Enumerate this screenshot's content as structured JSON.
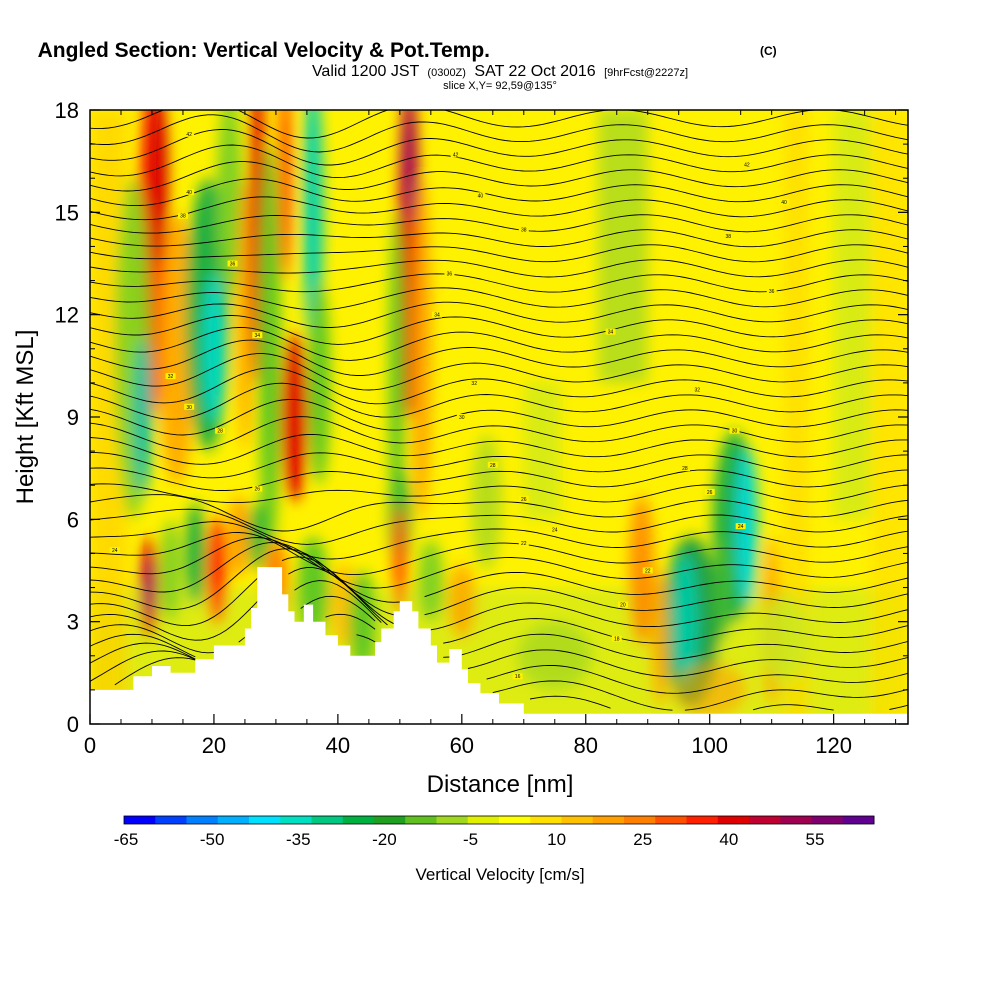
{
  "chart_data": {
    "type": "heatmap",
    "title": "Angled Section: Vertical Velocity & Pot.Temp.",
    "title_suffix": "(C)",
    "subtitle_valid": "Valid 1200 JST",
    "subtitle_utc": "(0300Z)",
    "subtitle_date": "SAT 22 Oct 2016",
    "subtitle_fcst": "[9hrFcst@2227z]",
    "slice_label": "slice X,Y= 92,59@135°",
    "xlabel": "Distance [nm]",
    "ylabel": "Height [Kft MSL]",
    "xlim": [
      0,
      132
    ],
    "ylim": [
      0,
      18
    ],
    "x_ticks": [
      0,
      20,
      40,
      60,
      80,
      100,
      120
    ],
    "y_ticks": [
      0,
      3,
      6,
      9,
      12,
      15,
      18
    ],
    "colorbar": {
      "label": "Vertical Velocity [cm/s]",
      "tick_labels": [
        -65,
        -50,
        -35,
        -20,
        -5,
        10,
        25,
        40,
        55
      ],
      "colors": [
        "#0000ff",
        "#0040ff",
        "#0080ff",
        "#00b0ff",
        "#00e0ff",
        "#00e0c0",
        "#00c880",
        "#00b040",
        "#20a020",
        "#60c020",
        "#a0d820",
        "#e0f000",
        "#ffff00",
        "#ffe000",
        "#ffc000",
        "#ffa000",
        "#ff8000",
        "#ff5000",
        "#ff2000",
        "#e00000",
        "#c00030",
        "#a00050",
        "#800070",
        "#600090"
      ]
    },
    "contour_labels": [
      {
        "x": 16,
        "y": 17.3,
        "text": "42"
      },
      {
        "x": 16,
        "y": 15.6,
        "text": "40"
      },
      {
        "x": 15,
        "y": 14.9,
        "text": "38"
      },
      {
        "x": 23,
        "y": 13.5,
        "text": "36"
      },
      {
        "x": 27,
        "y": 11.4,
        "text": "34"
      },
      {
        "x": 13,
        "y": 10.2,
        "text": "32"
      },
      {
        "x": 16,
        "y": 9.3,
        "text": "30"
      },
      {
        "x": 21,
        "y": 8.6,
        "text": "28"
      },
      {
        "x": 27,
        "y": 6.9,
        "text": "26"
      },
      {
        "x": 4,
        "y": 5.1,
        "text": "24"
      },
      {
        "x": 59,
        "y": 16.7,
        "text": "42"
      },
      {
        "x": 63,
        "y": 15.5,
        "text": "40"
      },
      {
        "x": 70,
        "y": 14.5,
        "text": "38"
      },
      {
        "x": 58,
        "y": 13.2,
        "text": "36"
      },
      {
        "x": 56,
        "y": 12.0,
        "text": "34"
      },
      {
        "x": 62,
        "y": 10.0,
        "text": "32"
      },
      {
        "x": 60,
        "y": 9.0,
        "text": "30"
      },
      {
        "x": 65,
        "y": 7.6,
        "text": "28"
      },
      {
        "x": 70,
        "y": 6.6,
        "text": "26"
      },
      {
        "x": 75,
        "y": 5.7,
        "text": "24"
      },
      {
        "x": 70,
        "y": 5.3,
        "text": "22"
      },
      {
        "x": 106,
        "y": 16.4,
        "text": "42"
      },
      {
        "x": 112,
        "y": 15.3,
        "text": "40"
      },
      {
        "x": 103,
        "y": 14.3,
        "text": "38"
      },
      {
        "x": 110,
        "y": 12.7,
        "text": "36"
      },
      {
        "x": 84,
        "y": 11.5,
        "text": "34"
      },
      {
        "x": 98,
        "y": 9.8,
        "text": "32"
      },
      {
        "x": 104,
        "y": 8.6,
        "text": "30"
      },
      {
        "x": 96,
        "y": 7.5,
        "text": "28"
      },
      {
        "x": 100,
        "y": 6.8,
        "text": "26"
      },
      {
        "x": 105,
        "y": 5.8,
        "text": "24"
      },
      {
        "x": 90,
        "y": 4.5,
        "text": "22"
      },
      {
        "x": 86,
        "y": 3.5,
        "text": "20"
      },
      {
        "x": 85,
        "y": 2.5,
        "text": "18"
      },
      {
        "x": 69,
        "y": 1.4,
        "text": "16"
      }
    ]
  }
}
